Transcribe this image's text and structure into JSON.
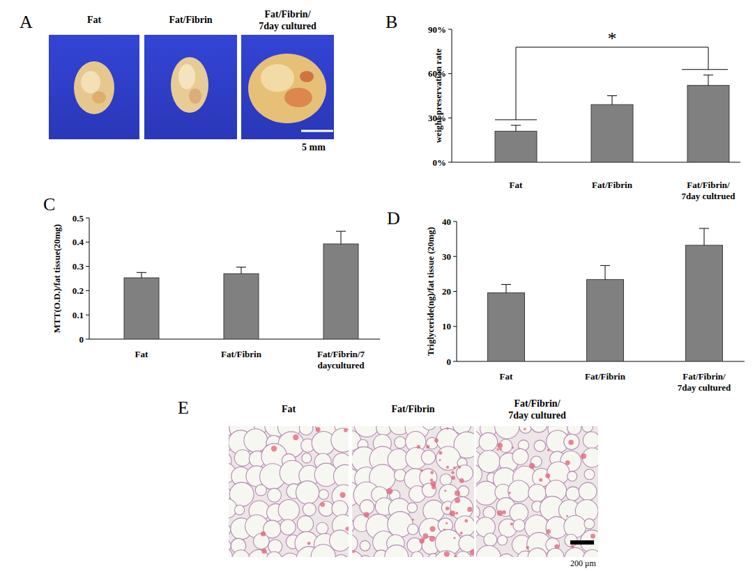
{
  "chart_data": [
    {
      "type": "bar",
      "y_label": "weight preservation rate",
      "categories": [
        "Fat",
        "Fat/Fibrin",
        "Fat/Fibrin/\n7day cultrued"
      ],
      "values": [
        21,
        39,
        52
      ],
      "errors": [
        4,
        6,
        7
      ],
      "color": "#808080",
      "ylim": [
        0,
        90
      ],
      "yticks": [
        {
          "value": 0,
          "label": "0%"
        },
        {
          "value": 30,
          "label": "30%"
        },
        {
          "value": 60,
          "label": "60%"
        },
        {
          "value": 90,
          "label": "90%"
        }
      ],
      "annotations": [
        {
          "text": "*",
          "between": [
            0,
            2
          ]
        }
      ]
    },
    {
      "type": "bar",
      "y_label": "MTT(O.D.)/fat tissue(20mg)",
      "categories": [
        "Fat",
        "Fat/Fibrin",
        "Fat/Fibrin/7\ndaycultured"
      ],
      "values": [
        0.253,
        0.27,
        0.393
      ],
      "errors": [
        0.022,
        0.027,
        0.052
      ],
      "color": "#808080",
      "ylim": [
        0,
        0.5
      ],
      "yticks": [
        0,
        0.1,
        0.2,
        0.3,
        0.4,
        0.5
      ]
    },
    {
      "type": "bar",
      "y_label": "Triglyceride(ng)/fat tissue (20mg)",
      "categories": [
        "Fat",
        "Fat/Fibrin",
        "Fat/Fibrin/\n7day cultured"
      ],
      "values": [
        19.6,
        23.4,
        33.2
      ],
      "errors": [
        2.4,
        4,
        4.8
      ],
      "color": "#808080",
      "ylim": [
        0,
        40
      ],
      "yticks": [
        0,
        10,
        20,
        30,
        40
      ]
    }
  ],
  "figure": {
    "panel_letters": [
      "A",
      "B",
      "C",
      "D",
      "E"
    ],
    "photo_panels": [
      {
        "labels": [
          "Fat",
          "Fat/Fibrin",
          "Fat/Fibrin/\n7day cultured"
        ],
        "scale_bar": "5 mm"
      },
      {
        "labels": [
          "Fat",
          "Fat/Fibrin",
          "Fat/Fibrin/\n7day cultured"
        ],
        "scale_bar": "200 μm"
      }
    ]
  }
}
